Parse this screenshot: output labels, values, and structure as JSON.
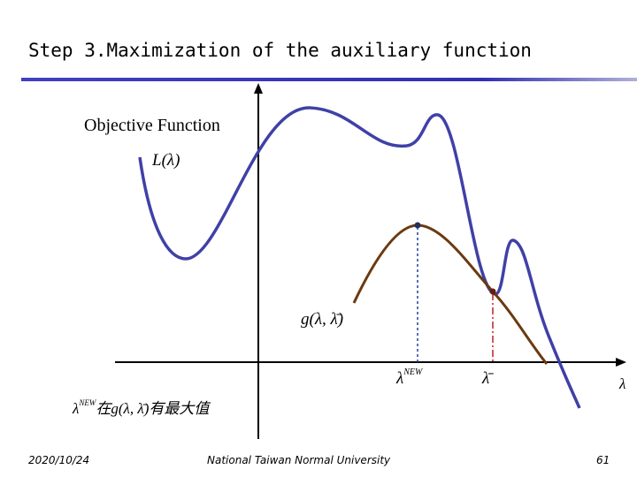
{
  "slide": {
    "title": "Step 3.Maximization of the auxiliary function",
    "objective_label": "Objective Function",
    "L_label": "L(λ)",
    "g_label": "g(λ, λ̄)",
    "lambda_new": {
      "base": "λ",
      "sup": "NEW"
    },
    "lambda_bar": "λ̄",
    "axis_label": "λ",
    "note": {
      "base": "λ",
      "sup": "NEW",
      "text": "在g(λ, λ̄)有最大值"
    },
    "footer": {
      "date": "2020/10/24",
      "institution": "National Taiwan Normal University",
      "page": "61"
    }
  }
}
